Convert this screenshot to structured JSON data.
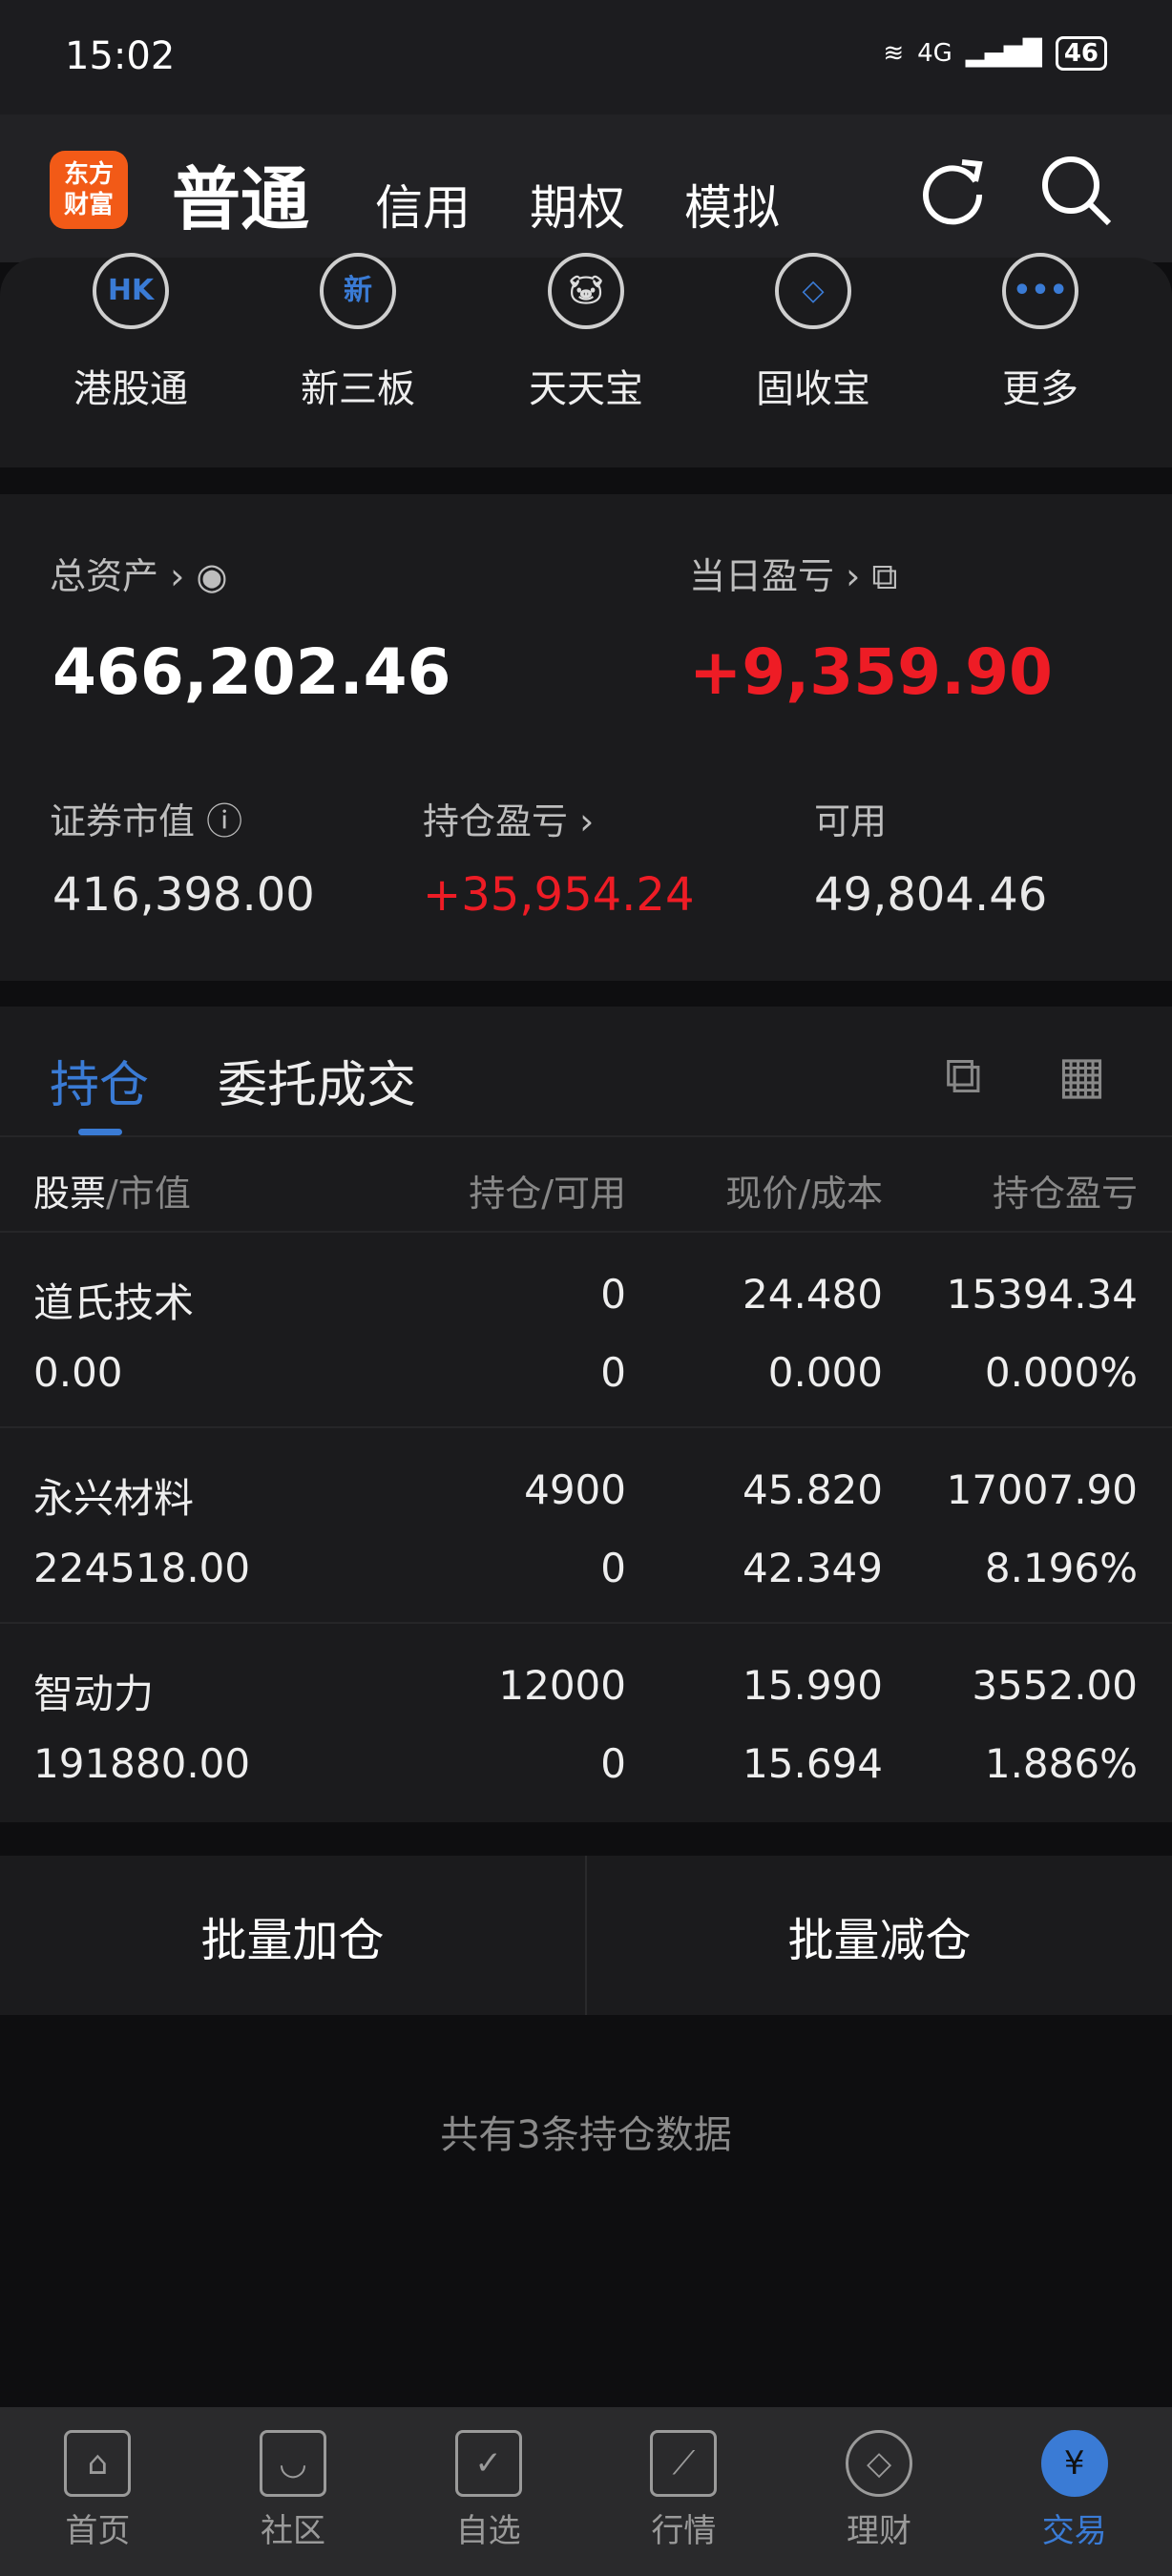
{
  "status": {
    "time": "15:02",
    "network": "4G",
    "battery": "46"
  },
  "header": {
    "logo_text": [
      "东方",
      "财富"
    ],
    "tabs": [
      "普通",
      "信用",
      "期权",
      "模拟"
    ],
    "icons": [
      "refresh-icon",
      "search-icon"
    ]
  },
  "shortcuts": [
    {
      "label": "港股通",
      "icon": "HK"
    },
    {
      "label": "新三板",
      "icon": "新"
    },
    {
      "label": "天天宝",
      "icon": "piggy-bank"
    },
    {
      "label": "固收宝",
      "icon": "money-bag"
    },
    {
      "label": "更多",
      "icon": "more"
    }
  ],
  "assets": {
    "total_label": "总资产",
    "total_value": "466,202.46",
    "daily_label": "当日盈亏",
    "daily_value": "+9,359.90",
    "market_label": "证券市值",
    "market_value": "416,398.00",
    "pnl_label": "持仓盈亏",
    "pnl_value": "+35,954.24",
    "avail_label": "可用",
    "avail_value": "49,804.46"
  },
  "positions": {
    "tabs": [
      "持仓",
      "委托成交"
    ],
    "headers": {
      "stock": "股票",
      "market": "/市值",
      "qty": "持仓/可用",
      "price": "现价/成本",
      "pnl": "持仓盈亏"
    },
    "rows": [
      {
        "name": "道氏技术",
        "value": "0.00",
        "qty": "0",
        "avail": "0",
        "price": "24.480",
        "cost": "0.000",
        "pnl": "15394.34",
        "pct": "0.000%"
      },
      {
        "name": "永兴材料",
        "value": "224518.00",
        "qty": "4900",
        "avail": "0",
        "price": "45.820",
        "cost": "42.349",
        "pnl": "17007.90",
        "pct": "8.196%"
      },
      {
        "name": "智动力",
        "value": "191880.00",
        "qty": "12000",
        "avail": "0",
        "price": "15.990",
        "cost": "15.694",
        "pnl": "3552.00",
        "pct": "1.886%"
      }
    ]
  },
  "buttons": {
    "add": "批量加仓",
    "reduce": "批量减仓"
  },
  "footer": "共有3条持仓数据",
  "nav": [
    {
      "label": "首页",
      "icon": "⌂"
    },
    {
      "label": "社区",
      "icon": "◡"
    },
    {
      "label": "自选",
      "icon": "✓"
    },
    {
      "label": "行情",
      "icon": "⟋"
    },
    {
      "label": "理财",
      "icon": "◇"
    },
    {
      "label": "交易",
      "icon": "¥"
    }
  ],
  "colors": {
    "accent": "#3a7bd5",
    "up": "#ee1c25",
    "brand": "#f25a17"
  }
}
